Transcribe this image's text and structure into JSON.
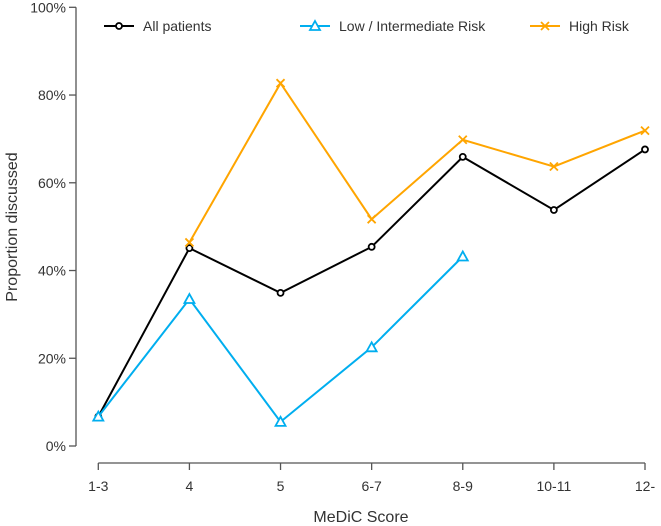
{
  "chart_data": {
    "type": "line",
    "title": "",
    "xlabel": "MeDiC Score",
    "ylabel": "Proportion discussed",
    "categories": [
      "1-3",
      "4",
      "5",
      "6-7",
      "8-9",
      "10-11",
      "12-"
    ],
    "ylim": [
      0,
      100
    ],
    "yticks": [
      0,
      20,
      40,
      60,
      80,
      100
    ],
    "ytick_labels": [
      "0%",
      "20%",
      "40%",
      "60%",
      "80%",
      "100%"
    ],
    "grid": false,
    "legend_position": "top",
    "series": [
      {
        "name": "All patients",
        "color": "#000000",
        "marker": "circle",
        "values": [
          6.7,
          45.1,
          34.9,
          45.4,
          65.9,
          53.8,
          67.6
        ]
      },
      {
        "name": "Low / Intermediate Risk",
        "color": "#00aeef",
        "marker": "triangle",
        "values": [
          6.7,
          33.5,
          5.5,
          22.5,
          43.2,
          null,
          null
        ]
      },
      {
        "name": "High Risk",
        "color": "#ffa500",
        "marker": "x",
        "values": [
          null,
          46.4,
          82.7,
          51.7,
          69.8,
          63.7,
          71.9
        ]
      }
    ]
  }
}
